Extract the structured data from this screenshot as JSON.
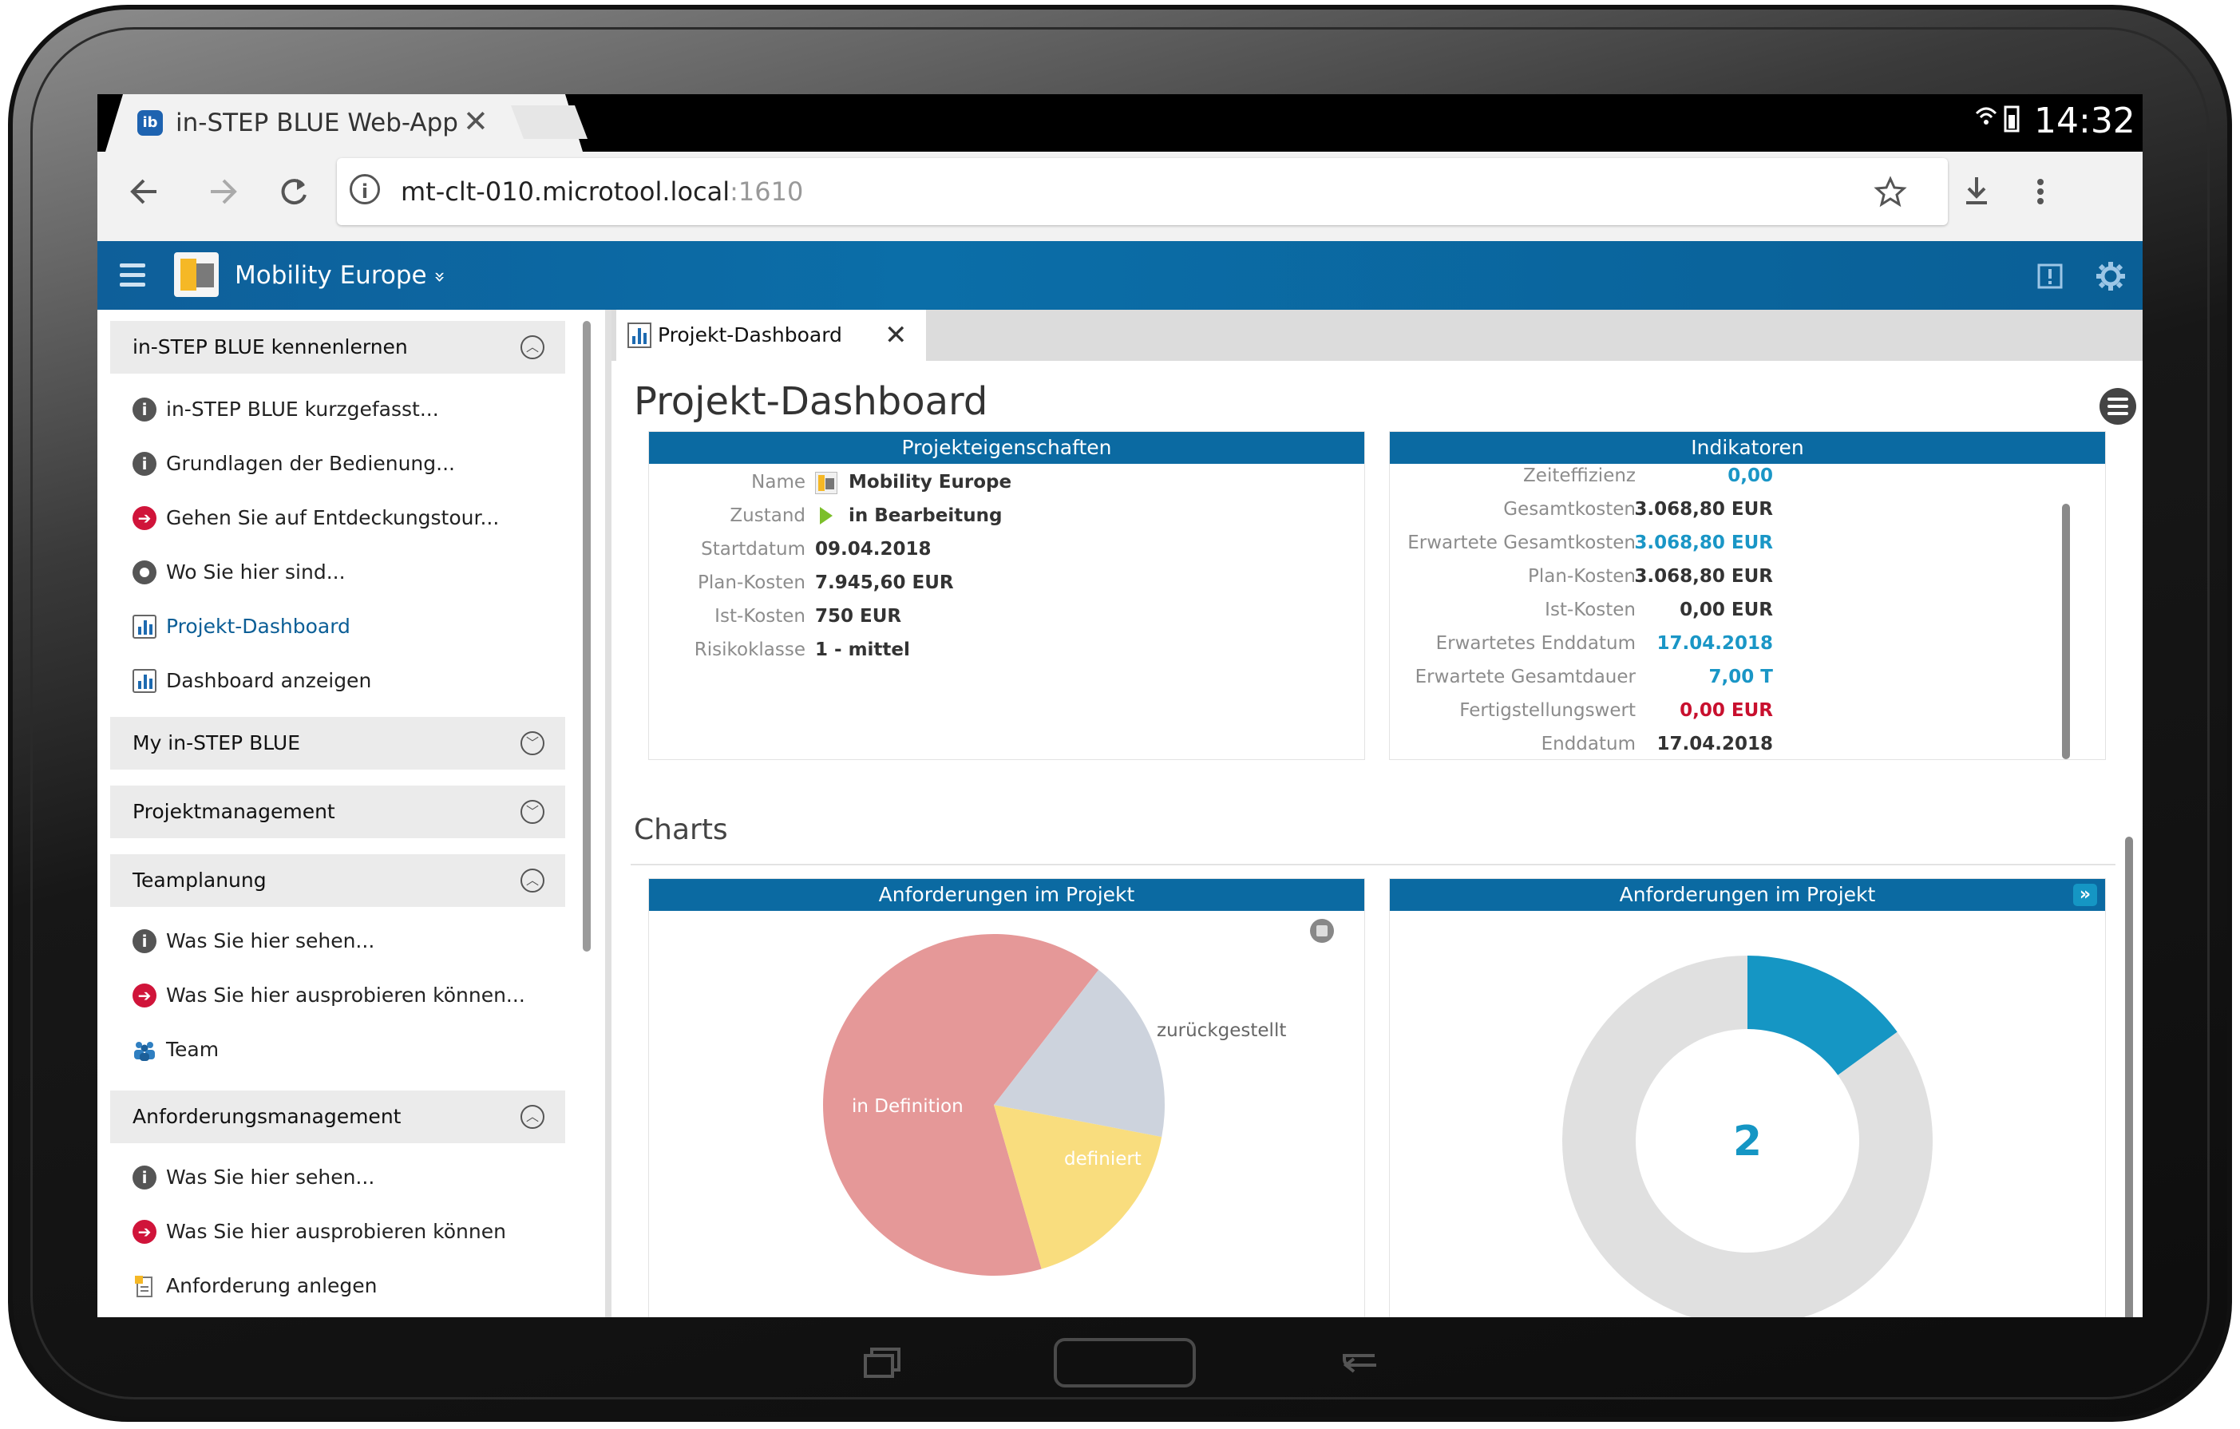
{
  "browser": {
    "tab_title": "in-STEP BLUE Web-App",
    "tab_icon_text": "ib",
    "tab_close": "✕",
    "clock": "14:32",
    "url_host": "mt-clt-010.microtool.local",
    "url_port": ":1610"
  },
  "app": {
    "project_name": "Mobility Europe",
    "project_dropdown_glyph": "»"
  },
  "sidebar": {
    "sections": [
      {
        "label": "in-STEP BLUE kennenlernen",
        "expanded": true,
        "items": [
          {
            "icon": "info-icon",
            "label": "in-STEP BLUE kurzgefasst..."
          },
          {
            "icon": "info-icon",
            "label": "Grundlagen der Bedienung..."
          },
          {
            "icon": "arrow-right-icon",
            "label": "Gehen Sie auf Entdeckungstour..."
          },
          {
            "icon": "target-icon",
            "label": "Wo Sie hier sind..."
          },
          {
            "icon": "bar-chart-icon",
            "label": "Projekt-Dashboard",
            "active": true
          },
          {
            "icon": "bar-chart-icon",
            "label": "Dashboard anzeigen"
          }
        ]
      },
      {
        "label": "My in-STEP BLUE",
        "expanded": false,
        "items": []
      },
      {
        "label": "Projektmanagement",
        "expanded": false,
        "items": []
      },
      {
        "label": "Teamplanung",
        "expanded": true,
        "items": [
          {
            "icon": "info-icon",
            "label": "Was Sie hier sehen..."
          },
          {
            "icon": "arrow-right-icon",
            "label": "Was Sie hier ausprobieren können..."
          },
          {
            "icon": "team-icon",
            "label": "Team"
          }
        ]
      },
      {
        "label": "Anforderungsmanagement",
        "expanded": true,
        "items": [
          {
            "icon": "info-icon",
            "label": "Was Sie hier sehen..."
          },
          {
            "icon": "arrow-right-icon",
            "label": "Was Sie hier ausprobieren können"
          },
          {
            "icon": "requirement-icon",
            "label": "Anforderung anlegen"
          }
        ]
      }
    ]
  },
  "main": {
    "tab_label": "Projekt-Dashboard",
    "page_title": "Projekt-Dashboard",
    "properties": {
      "title": "Projekteigenschaften",
      "rows": [
        {
          "key": "Name",
          "value": "Mobility Europe"
        },
        {
          "key": "Zustand",
          "value": "in Bearbeitung"
        },
        {
          "key": "Startdatum",
          "value": "09.04.2018"
        },
        {
          "key": "Plan-Kosten",
          "value": "7.945,60 EUR"
        },
        {
          "key": "Ist-Kosten",
          "value": "750 EUR"
        },
        {
          "key": "Risikoklasse",
          "value": "1 - mittel"
        }
      ]
    },
    "indicators": {
      "title": "Indikatoren",
      "rows": [
        {
          "key": "Zeiteffizienz",
          "value": "0,00",
          "tone": "blue"
        },
        {
          "key": "Gesamtkosten",
          "value": "3.068,80 EUR",
          "tone": "normal"
        },
        {
          "key": "Erwartete Gesamtkosten",
          "value": "3.068,80 EUR",
          "tone": "blue"
        },
        {
          "key": "Plan-Kosten",
          "value": "3.068,80 EUR",
          "tone": "normal"
        },
        {
          "key": "Ist-Kosten",
          "value": "0,00 EUR",
          "tone": "normal"
        },
        {
          "key": "Erwartetes Enddatum",
          "value": "17.04.2018",
          "tone": "blue"
        },
        {
          "key": "Erwartete Gesamtdauer",
          "value": "7,00 T",
          "tone": "blue"
        },
        {
          "key": "Fertigstellungswert",
          "value": "0,00 EUR",
          "tone": "red"
        },
        {
          "key": "Enddatum",
          "value": "17.04.2018",
          "tone": "normal"
        }
      ]
    },
    "charts_heading": "Charts"
  },
  "chart_data": [
    {
      "type": "pie",
      "title": "Anforderungen im Projekt",
      "categories": [
        "in Definition",
        "zurückgestellt",
        "definiert"
      ],
      "values": [
        0.65,
        0.175,
        0.175
      ],
      "colors": [
        "#e59898",
        "#cdd3dd",
        "#f9dd7e"
      ]
    },
    {
      "type": "pie",
      "title": "Anforderungen im Projekt",
      "center_label": "2",
      "values": [
        0.15,
        0.85
      ],
      "colors": [
        "#1596c4",
        "#e0e0e0"
      ]
    }
  ],
  "colors": {
    "header_blue": "#0b6aa2",
    "accent_blue": "#1a96c6",
    "alert_red": "#c8102e"
  }
}
